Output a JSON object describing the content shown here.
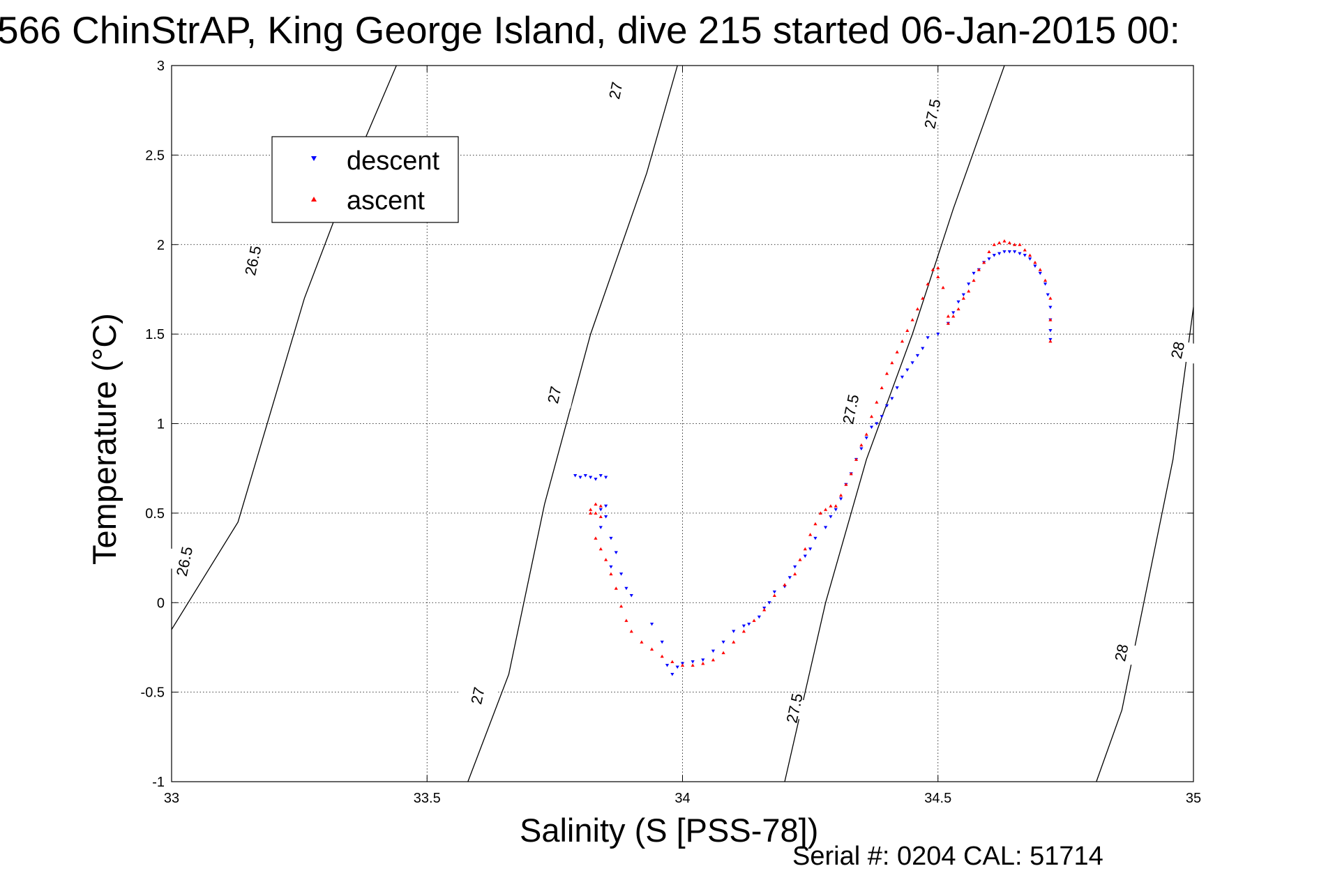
{
  "chart_data": {
    "type": "scatter",
    "title": "566 ChinStrAP, King George Island, dive 215 started 06-Jan-2015 00:",
    "xlabel": "Salinity (S [PSS-78])",
    "ylabel": "Temperature (°C)",
    "xlim": [
      33,
      35
    ],
    "ylim": [
      -1,
      3
    ],
    "x_ticks": [
      "33",
      "33.5",
      "34",
      "34.5",
      "35"
    ],
    "y_ticks": [
      "-1",
      "-0.5",
      "0",
      "0.5",
      "1",
      "1.5",
      "2",
      "2.5",
      "3"
    ],
    "grid": true,
    "legend_position": "top-left",
    "footer": "Serial #: 0204  CAL: 51714",
    "contours": [
      {
        "label": "26.5",
        "points": [
          [
            33.0,
            -0.15
          ],
          [
            33.13,
            0.45
          ],
          [
            33.26,
            1.7
          ],
          [
            33.38,
            2.6
          ],
          [
            33.44,
            3.0
          ]
        ],
        "label_at": [
          [
            33.026,
            0.23
          ],
          [
            33.16,
            1.91
          ]
        ]
      },
      {
        "label": "27",
        "points": [
          [
            33.58,
            -1.0
          ],
          [
            33.66,
            -0.4
          ],
          [
            33.73,
            0.55
          ],
          [
            33.82,
            1.5
          ],
          [
            33.93,
            2.4
          ],
          [
            33.99,
            3.0
          ]
        ],
        "label_at": [
          [
            33.6,
            -0.52
          ],
          [
            33.75,
            1.16
          ],
          [
            33.87,
            2.86
          ]
        ]
      },
      {
        "label": "27.5",
        "points": [
          [
            34.2,
            -1.0
          ],
          [
            34.28,
            0.0
          ],
          [
            34.36,
            0.8
          ],
          [
            34.45,
            1.5
          ],
          [
            34.53,
            2.2
          ],
          [
            34.63,
            3.0
          ]
        ],
        "label_at": [
          [
            34.22,
            -0.59
          ],
          [
            34.33,
            1.08
          ],
          [
            34.49,
            2.73
          ]
        ]
      },
      {
        "label": "28",
        "points": [
          [
            34.81,
            -1.0
          ],
          [
            34.86,
            -0.6
          ],
          [
            34.91,
            0.1
          ],
          [
            34.96,
            0.8
          ],
          [
            35.0,
            1.65
          ]
        ],
        "label_at": [
          [
            34.86,
            -0.28
          ],
          [
            34.97,
            1.41
          ]
        ]
      }
    ],
    "series": [
      {
        "name": "descent",
        "color": "#0000ff",
        "marker": "triangle-down",
        "x": [
          33.79,
          33.8,
          33.81,
          33.82,
          33.83,
          33.84,
          33.85,
          33.84,
          33.85,
          33.85,
          33.84,
          33.86,
          33.87,
          33.86,
          33.88,
          33.89,
          33.9,
          33.94,
          33.96,
          33.97,
          33.98,
          33.99,
          34.0,
          34.02,
          34.04,
          34.06,
          34.08,
          34.1,
          34.12,
          34.13,
          34.15,
          34.16,
          34.17,
          34.18,
          34.2,
          34.21,
          34.22,
          34.24,
          34.25,
          34.26,
          34.28,
          34.29,
          34.3,
          34.31,
          34.32,
          34.33,
          34.34,
          34.35,
          34.36,
          34.37,
          34.38,
          34.39,
          34.4,
          34.41,
          34.42,
          34.43,
          34.44,
          34.45,
          34.46,
          34.47,
          34.48,
          34.5,
          34.52,
          34.53,
          34.54,
          34.55,
          34.56,
          34.57,
          34.58,
          34.59,
          34.6,
          34.61,
          34.62,
          34.63,
          34.64,
          34.65,
          34.66,
          34.67,
          34.68,
          34.69,
          34.7,
          34.71,
          34.715,
          34.72,
          34.72,
          34.72,
          34.72
        ],
        "y": [
          0.71,
          0.7,
          0.71,
          0.7,
          0.69,
          0.71,
          0.7,
          0.52,
          0.54,
          0.48,
          0.42,
          0.36,
          0.28,
          0.2,
          0.16,
          0.08,
          0.04,
          -0.12,
          -0.22,
          -0.35,
          -0.4,
          -0.36,
          -0.34,
          -0.33,
          -0.32,
          -0.27,
          -0.22,
          -0.16,
          -0.13,
          -0.12,
          -0.08,
          -0.03,
          0.0,
          0.06,
          0.09,
          0.14,
          0.2,
          0.26,
          0.3,
          0.36,
          0.42,
          0.48,
          0.52,
          0.58,
          0.66,
          0.72,
          0.8,
          0.86,
          0.92,
          0.98,
          1.0,
          1.04,
          1.1,
          1.14,
          1.2,
          1.26,
          1.3,
          1.34,
          1.38,
          1.42,
          1.48,
          1.5,
          1.56,
          1.62,
          1.68,
          1.72,
          1.78,
          1.84,
          1.86,
          1.9,
          1.92,
          1.94,
          1.95,
          1.96,
          1.96,
          1.96,
          1.95,
          1.94,
          1.92,
          1.88,
          1.84,
          1.78,
          1.72,
          1.65,
          1.58,
          1.52,
          1.47
        ]
      },
      {
        "name": "ascent",
        "color": "#ff0000",
        "marker": "triangle-up",
        "x": [
          33.82,
          33.83,
          33.84,
          33.83,
          33.82,
          33.84,
          33.83,
          33.84,
          33.85,
          33.86,
          33.87,
          33.88,
          33.89,
          33.9,
          33.92,
          33.94,
          33.96,
          33.98,
          34.0,
          34.02,
          34.04,
          34.06,
          34.08,
          34.1,
          34.12,
          34.14,
          34.16,
          34.18,
          34.2,
          34.22,
          34.23,
          34.24,
          34.25,
          34.26,
          34.27,
          34.28,
          34.29,
          34.3,
          34.31,
          34.32,
          34.33,
          34.34,
          34.35,
          34.36,
          34.37,
          34.38,
          34.39,
          34.4,
          34.41,
          34.42,
          34.43,
          34.44,
          34.45,
          34.46,
          34.47,
          34.48,
          34.49,
          34.5,
          34.5,
          34.51,
          34.52,
          34.52,
          34.53,
          34.54,
          34.55,
          34.56,
          34.57,
          34.58,
          34.59,
          34.6,
          34.61,
          34.62,
          34.63,
          34.64,
          34.65,
          34.66,
          34.67,
          34.68,
          34.69,
          34.7,
          34.71,
          34.72,
          34.72,
          34.72
        ],
        "y": [
          0.52,
          0.55,
          0.54,
          0.5,
          0.5,
          0.48,
          0.36,
          0.3,
          0.24,
          0.16,
          0.08,
          -0.02,
          -0.1,
          -0.16,
          -0.22,
          -0.26,
          -0.3,
          -0.33,
          -0.35,
          -0.35,
          -0.34,
          -0.32,
          -0.28,
          -0.22,
          -0.16,
          -0.1,
          -0.04,
          0.04,
          0.1,
          0.16,
          0.24,
          0.3,
          0.38,
          0.44,
          0.5,
          0.52,
          0.54,
          0.54,
          0.6,
          0.66,
          0.72,
          0.8,
          0.88,
          0.94,
          1.04,
          1.12,
          1.2,
          1.28,
          1.34,
          1.4,
          1.46,
          1.52,
          1.58,
          1.64,
          1.7,
          1.78,
          1.86,
          1.87,
          1.82,
          1.76,
          1.6,
          1.56,
          1.6,
          1.64,
          1.7,
          1.74,
          1.8,
          1.86,
          1.9,
          1.96,
          2.0,
          2.01,
          2.02,
          2.01,
          2.0,
          2.0,
          1.97,
          1.94,
          1.9,
          1.86,
          1.8,
          1.7,
          1.58,
          1.46
        ]
      }
    ]
  }
}
